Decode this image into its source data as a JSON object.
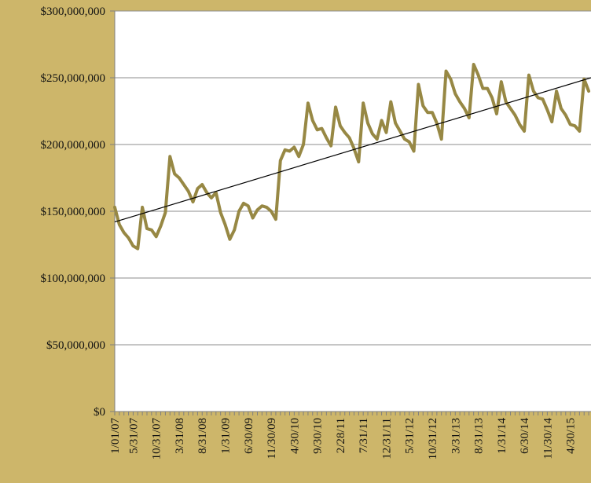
{
  "chart_data": {
    "type": "line",
    "title": "",
    "xlabel": "",
    "ylabel": "",
    "ylim": [
      0,
      300000000
    ],
    "grid": true,
    "y_ticks": [
      {
        "value": 0,
        "label": "$0"
      },
      {
        "value": 50000000,
        "label": "$50,000,000"
      },
      {
        "value": 100000000,
        "label": "$100,000,000"
      },
      {
        "value": 150000000,
        "label": "$150,000,000"
      },
      {
        "value": 200000000,
        "label": "$200,000,000"
      },
      {
        "value": 250000000,
        "label": "$250,000,000"
      },
      {
        "value": 300000000,
        "label": "$300,000,000"
      }
    ],
    "x_ticks": [
      {
        "month_index": 0,
        "label": "1/01/07"
      },
      {
        "month_index": 4,
        "label": "5/31/07"
      },
      {
        "month_index": 9,
        "label": "10/31/07"
      },
      {
        "month_index": 14,
        "label": "3/31/08"
      },
      {
        "month_index": 19,
        "label": "8/31/08"
      },
      {
        "month_index": 24,
        "label": "1/31/09"
      },
      {
        "month_index": 29,
        "label": "6/30/09"
      },
      {
        "month_index": 34,
        "label": "11/30/09"
      },
      {
        "month_index": 39,
        "label": "4/30/10"
      },
      {
        "month_index": 44,
        "label": "9/30/10"
      },
      {
        "month_index": 49,
        "label": "2/28/11"
      },
      {
        "month_index": 54,
        "label": "7/31/11"
      },
      {
        "month_index": 59,
        "label": "12/31/11"
      },
      {
        "month_index": 64,
        "label": "5/31/12"
      },
      {
        "month_index": 69,
        "label": "10/31/12"
      },
      {
        "month_index": 74,
        "label": "3/31/13"
      },
      {
        "month_index": 79,
        "label": "8/31/13"
      },
      {
        "month_index": 84,
        "label": "1/31/14"
      },
      {
        "month_index": 89,
        "label": "6/30/14"
      },
      {
        "month_index": 94,
        "label": "11/30/14"
      },
      {
        "month_index": 99,
        "label": "4/30/15"
      }
    ],
    "x_range": [
      0,
      103.5
    ],
    "series": [
      {
        "color": "#978844",
        "values": [
          153000000,
          140000000,
          134000000,
          130000000,
          124000000,
          122000000,
          153000000,
          137000000,
          136000000,
          131000000,
          139000000,
          149000000,
          191000000,
          178000000,
          175000000,
          170000000,
          165000000,
          157000000,
          167000000,
          170000000,
          164000000,
          160000000,
          164000000,
          149000000,
          140000000,
          129000000,
          136000000,
          150000000,
          156000000,
          154000000,
          145000000,
          151000000,
          154000000,
          153000000,
          150000000,
          144000000,
          188000000,
          196000000,
          195000000,
          198000000,
          191000000,
          200000000,
          231000000,
          218000000,
          211000000,
          212000000,
          205000000,
          199000000,
          228000000,
          214000000,
          209000000,
          205000000,
          197000000,
          187000000,
          231000000,
          216000000,
          208000000,
          204000000,
          218000000,
          209000000,
          232000000,
          216000000,
          210000000,
          204000000,
          202000000,
          195000000,
          245000000,
          229000000,
          224000000,
          224000000,
          216000000,
          204000000,
          255000000,
          249000000,
          238000000,
          232000000,
          227000000,
          220000000,
          260000000,
          252000000,
          242000000,
          242000000,
          235000000,
          223000000,
          247000000,
          232000000,
          227000000,
          222000000,
          215000000,
          210000000,
          252000000,
          240000000,
          235000000,
          234000000,
          226000000,
          217000000,
          240000000,
          227000000,
          222000000,
          215000000,
          214000000,
          210000000,
          249000000,
          240000000
        ]
      }
    ],
    "trendline": {
      "color": "#000000",
      "from": [
        0,
        142000000
      ],
      "to": [
        103.5,
        250000000
      ]
    }
  }
}
